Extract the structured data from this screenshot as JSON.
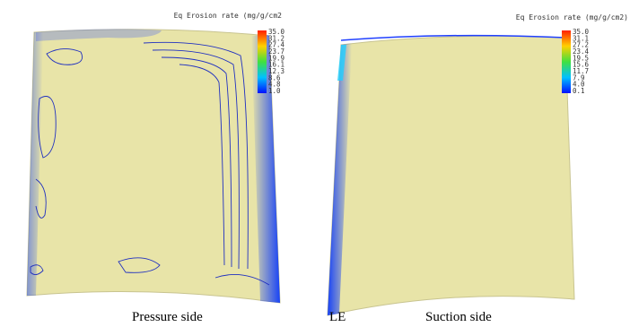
{
  "panels": [
    {
      "colorbar": {
        "title": "Eq Erosion rate (mg/g/cm2",
        "labels": [
          "35.0",
          "31.2",
          "27.4",
          "23.7",
          "19.9",
          "16.1",
          "12.3",
          "8.6",
          "4.8",
          "1.0"
        ]
      }
    },
    {
      "colorbar": {
        "title": "Eq Erosion rate (mg/g/cm2)",
        "labels": [
          "35.0",
          "31.1",
          "27.2",
          "23.4",
          "19.5",
          "15.6",
          "11.7",
          "7.9",
          "4.0",
          "0.1"
        ]
      }
    }
  ],
  "captions": [
    "Pressure side",
    "LE",
    "Suction side"
  ]
}
